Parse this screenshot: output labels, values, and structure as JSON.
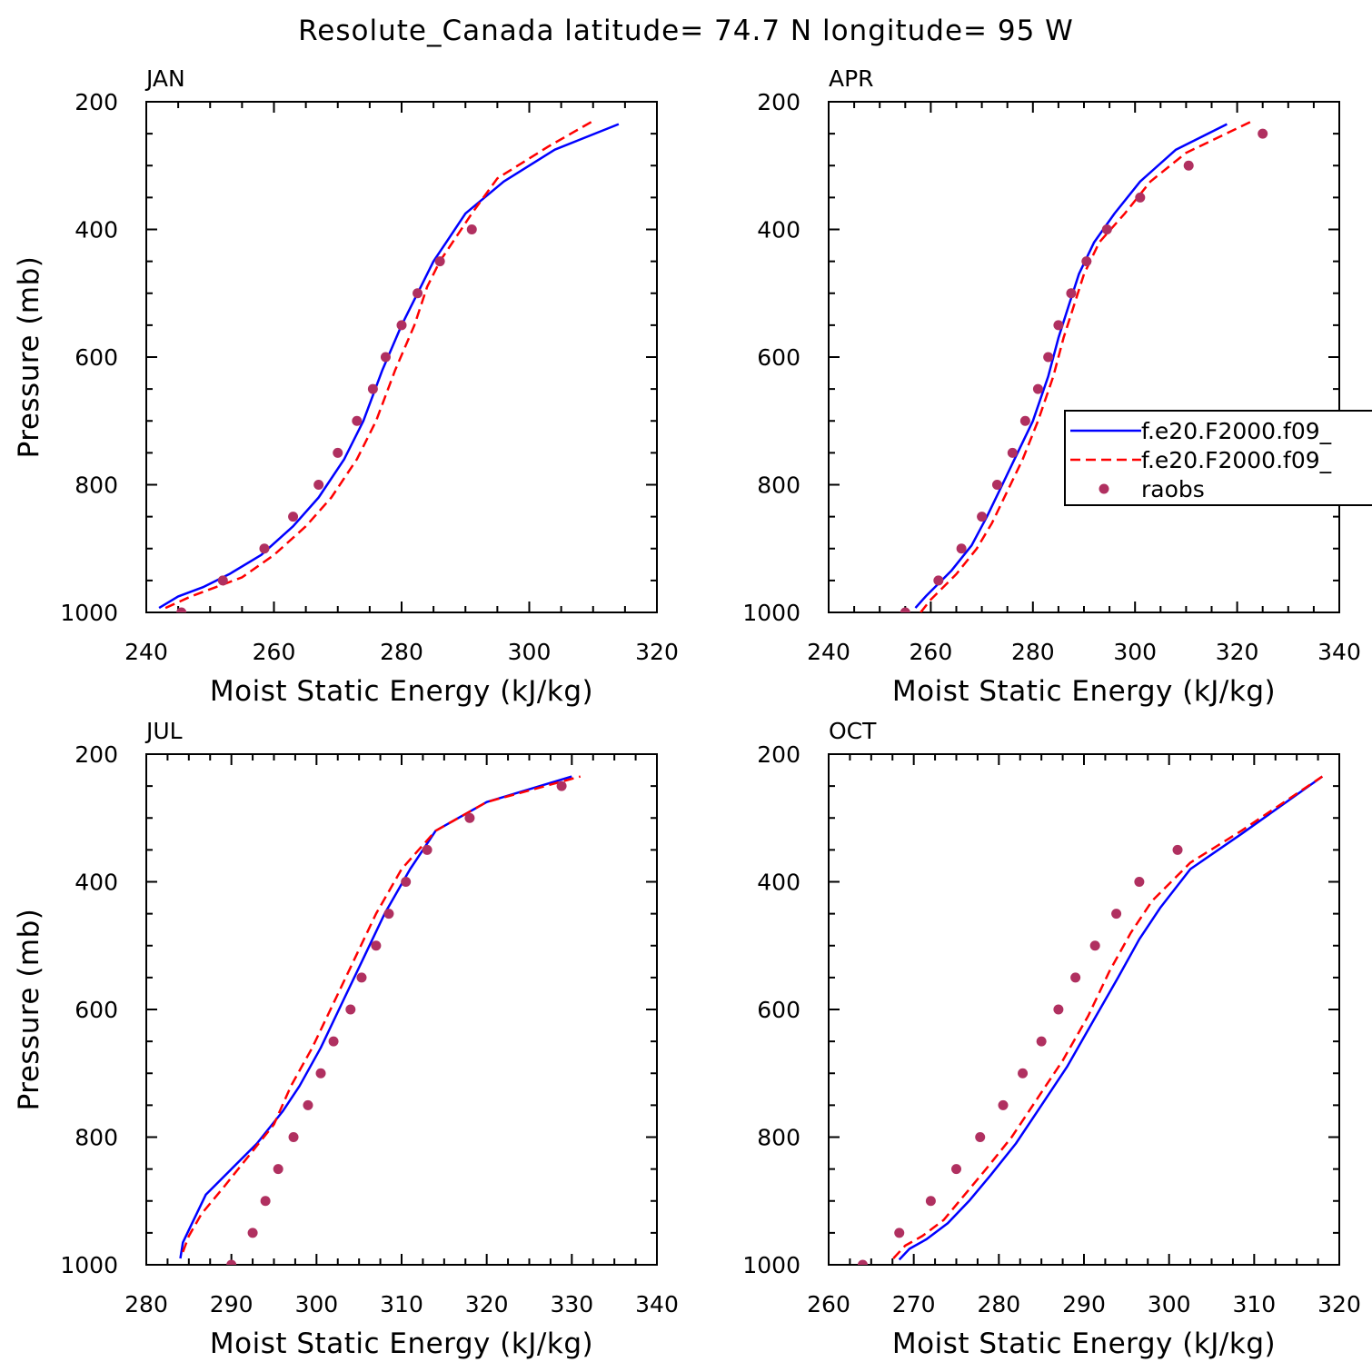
{
  "title": "Resolute_Canada   latitude= 74.7 N longitude= 95 W",
  "colors": {
    "model1": "#0000ff",
    "model2": "#ff0000",
    "obs": "#b03060"
  },
  "legend": {
    "placement": "right-middle of APR panel",
    "entries": [
      {
        "label": "f.e20.F2000.f09_",
        "style": "solid",
        "color": "#0000ff"
      },
      {
        "label": "f.e20.F2000.f09_",
        "style": "dashed",
        "color": "#ff0000"
      },
      {
        "label": "raobs",
        "style": "dot",
        "color": "#b03060"
      }
    ]
  },
  "chart_data": [
    {
      "type": "line",
      "title": "JAN",
      "xlabel": "Moist Static Energy (kJ/kg)",
      "ylabel": "Pressure (mb)",
      "xlim": [
        240,
        320
      ],
      "ylim": [
        1000,
        200
      ],
      "xticks": [
        240,
        260,
        280,
        300,
        320
      ],
      "yticks": [
        200,
        400,
        600,
        800,
        1000
      ],
      "series": [
        {
          "name": "f.e20.F2000.f09_",
          "style": "solid",
          "x": [
            242,
            245,
            249,
            253,
            258,
            263,
            267,
            271,
            274,
            277,
            280,
            283,
            285,
            287,
            290,
            296,
            304,
            314
          ],
          "y": [
            993,
            975,
            960,
            940,
            910,
            865,
            820,
            760,
            700,
            620,
            550,
            490,
            450,
            420,
            375,
            325,
            275,
            235
          ]
        },
        {
          "name": "f.e20.F2000.f09_",
          "style": "dashed",
          "x": [
            243,
            247,
            251,
            255,
            260,
            265,
            269,
            273,
            276,
            279,
            282,
            284,
            286,
            288,
            291,
            295,
            303,
            310
          ],
          "y": [
            993,
            975,
            960,
            945,
            910,
            865,
            820,
            760,
            700,
            620,
            550,
            490,
            450,
            420,
            375,
            320,
            270,
            230
          ]
        },
        {
          "name": "raobs",
          "style": "dot",
          "x": [
            245.5,
            252,
            258.5,
            263,
            267,
            270,
            273,
            275.5,
            277.5,
            280,
            282.5,
            286,
            291
          ],
          "y": [
            1000,
            950,
            900,
            850,
            800,
            750,
            700,
            650,
            600,
            550,
            500,
            450,
            400
          ]
        }
      ]
    },
    {
      "type": "line",
      "title": "APR",
      "xlabel": "Moist Static Energy (kJ/kg)",
      "ylabel": "",
      "xlim": [
        240,
        340
      ],
      "ylim": [
        1000,
        200
      ],
      "xticks": [
        240,
        260,
        280,
        300,
        320,
        340
      ],
      "yticks": [
        200,
        400,
        600,
        800,
        1000
      ],
      "series": [
        {
          "name": "f.e20.F2000.f09_",
          "style": "solid",
          "x": [
            257,
            259,
            264,
            268,
            271,
            274,
            277,
            280,
            283,
            285,
            287,
            289,
            292,
            296,
            301,
            308,
            318
          ],
          "y": [
            993,
            975,
            935,
            895,
            850,
            800,
            750,
            700,
            630,
            570,
            520,
            470,
            420,
            375,
            325,
            275,
            235
          ]
        },
        {
          "name": "f.e20.F2000.f09_",
          "style": "dashed",
          "x": [
            258,
            260,
            265,
            269,
            272,
            275,
            278,
            281,
            284,
            286,
            288,
            290,
            293,
            298,
            303,
            310,
            323
          ],
          "y": [
            1000,
            980,
            940,
            900,
            860,
            810,
            760,
            700,
            630,
            570,
            520,
            470,
            420,
            375,
            325,
            280,
            230
          ]
        },
        {
          "name": "raobs",
          "style": "dot",
          "x": [
            255,
            261.5,
            266,
            270,
            273,
            276,
            278.5,
            281,
            283,
            285,
            287.5,
            290.5,
            294.5,
            301,
            310.5,
            325
          ],
          "y": [
            1000,
            950,
            900,
            850,
            800,
            750,
            700,
            650,
            600,
            550,
            500,
            450,
            400,
            350,
            300,
            250
          ]
        }
      ]
    },
    {
      "type": "line",
      "title": "JUL",
      "xlabel": "Moist Static Energy (kJ/kg)",
      "ylabel": "Pressure (mb)",
      "xlim": [
        280,
        340
      ],
      "ylim": [
        1000,
        200
      ],
      "xticks": [
        280,
        290,
        300,
        310,
        320,
        330,
        340
      ],
      "yticks": [
        200,
        400,
        600,
        800,
        1000
      ],
      "series": [
        {
          "name": "f.e20.F2000.f09_",
          "style": "solid",
          "x": [
            284,
            284.3,
            285.2,
            287,
            290,
            293,
            296,
            298,
            300.5,
            303,
            305.5,
            308,
            311,
            314,
            320,
            330
          ],
          "y": [
            990,
            965,
            940,
            890,
            850,
            810,
            760,
            720,
            660,
            590,
            520,
            450,
            380,
            320,
            275,
            235
          ]
        },
        {
          "name": "f.e20.F2000.f09_",
          "style": "dashed",
          "x": [
            284.3,
            285,
            286.5,
            289,
            292,
            295,
            297,
            299.5,
            302,
            304.5,
            307,
            310,
            314,
            320,
            331
          ],
          "y": [
            980,
            955,
            920,
            880,
            830,
            780,
            720,
            660,
            590,
            520,
            450,
            380,
            320,
            275,
            235
          ]
        },
        {
          "name": "raobs",
          "style": "dot",
          "x": [
            290,
            292.5,
            294,
            295.5,
            297.3,
            299,
            300.5,
            302,
            304,
            305.3,
            307,
            308.5,
            310.5,
            313,
            318,
            328.8
          ],
          "y": [
            1000,
            950,
            900,
            850,
            800,
            750,
            700,
            650,
            600,
            550,
            500,
            450,
            400,
            350,
            300,
            250
          ]
        }
      ]
    },
    {
      "type": "line",
      "title": "OCT",
      "xlabel": "Moist Static Energy (kJ/kg)",
      "ylabel": "",
      "xlim": [
        260,
        320
      ],
      "ylim": [
        1000,
        200
      ],
      "xticks": [
        260,
        270,
        280,
        290,
        300,
        310,
        320
      ],
      "yticks": [
        200,
        400,
        600,
        800,
        1000
      ],
      "series": [
        {
          "name": "f.e20.F2000.f09_",
          "style": "solid",
          "x": [
            268.3,
            269.5,
            271.5,
            274,
            276.5,
            279,
            282,
            285,
            288,
            291,
            294,
            296.5,
            299,
            302.5,
            308.5,
            318
          ],
          "y": [
            992,
            975,
            960,
            935,
            900,
            860,
            810,
            750,
            690,
            620,
            550,
            490,
            440,
            380,
            325,
            235
          ]
        },
        {
          "name": "f.e20.F2000.f09_",
          "style": "dashed",
          "x": [
            267.6,
            269,
            271,
            273.5,
            276,
            278.5,
            281.5,
            284.5,
            287.5,
            290.5,
            293,
            295.5,
            298,
            302.5,
            308.5,
            318
          ],
          "y": [
            990,
            970,
            955,
            930,
            890,
            850,
            800,
            740,
            680,
            610,
            540,
            480,
            430,
            370,
            320,
            235
          ]
        },
        {
          "name": "raobs",
          "style": "dot",
          "x": [
            264,
            268.3,
            272,
            275,
            277.8,
            280.5,
            282.8,
            285,
            287,
            289,
            291.3,
            293.8,
            296.5,
            301
          ],
          "y": [
            1000,
            950,
            900,
            850,
            800,
            750,
            700,
            650,
            600,
            550,
            500,
            450,
            400,
            350
          ]
        }
      ]
    }
  ]
}
